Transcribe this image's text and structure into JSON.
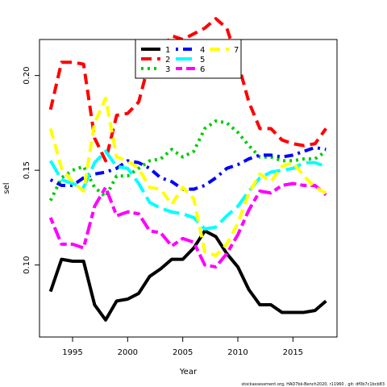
{
  "chart_data": {
    "type": "line",
    "xlabel": "Year",
    "ylabel": "sel",
    "xlim": [
      1992.0,
      2019.0
    ],
    "ylim": [
      0.062,
      0.219
    ],
    "xticks": [
      1995,
      2000,
      2005,
      2010,
      2015
    ],
    "yticks": [
      0.1,
      0.15,
      0.2
    ],
    "ytick_labels": [
      "0.10",
      "0.15",
      "0.20"
    ],
    "legend_position": "top-center",
    "caption": "stockassessment.org,  HAD7bk-Bench2020,  r11960 ,  git:  df0b7c1bcb83",
    "x": [
      1993,
      1994,
      1995,
      1996,
      1997,
      1998,
      1999,
      2000,
      2001,
      2002,
      2003,
      2004,
      2005,
      2006,
      2007,
      2008,
      2009,
      2010,
      2011,
      2012,
      2013,
      2014,
      2015,
      2016,
      2017,
      2018
    ],
    "series": [
      {
        "name": "1",
        "color": "#000000",
        "dash": "solid",
        "values": [
          0.086,
          0.103,
          0.102,
          0.102,
          0.079,
          0.071,
          0.081,
          0.082,
          0.085,
          0.094,
          0.098,
          0.103,
          0.103,
          0.109,
          0.118,
          0.115,
          0.106,
          0.099,
          0.087,
          0.079,
          0.079,
          0.075,
          0.075,
          0.075,
          0.076,
          0.081
        ]
      },
      {
        "name": "2",
        "color": "#ff0000",
        "dash": "dashed",
        "values": [
          0.182,
          0.207,
          0.207,
          0.206,
          0.167,
          0.155,
          0.179,
          0.18,
          0.186,
          0.208,
          0.213,
          0.221,
          0.219,
          0.222,
          0.225,
          0.23,
          0.225,
          0.207,
          0.186,
          0.172,
          0.172,
          0.166,
          0.164,
          0.163,
          0.164,
          0.172
        ]
      },
      {
        "name": "3",
        "color": "#00cc00",
        "dash": "dotted",
        "values": [
          0.134,
          0.146,
          0.15,
          0.152,
          0.141,
          0.136,
          0.147,
          0.147,
          0.151,
          0.155,
          0.156,
          0.161,
          0.157,
          0.16,
          0.172,
          0.176,
          0.175,
          0.17,
          0.163,
          0.157,
          0.157,
          0.155,
          0.155,
          0.156,
          0.156,
          0.16
        ]
      },
      {
        "name": "4",
        "color": "#0000ff",
        "dash": "dotdash",
        "values": [
          0.145,
          0.142,
          0.142,
          0.146,
          0.148,
          0.149,
          0.151,
          0.155,
          0.154,
          0.151,
          0.146,
          0.144,
          0.14,
          0.14,
          0.142,
          0.146,
          0.151,
          0.153,
          0.156,
          0.158,
          0.158,
          0.157,
          0.158,
          0.16,
          0.162,
          0.161
        ]
      },
      {
        "name": "5",
        "color": "#00ffff",
        "dash": "longdash",
        "values": [
          0.155,
          0.145,
          0.143,
          0.141,
          0.154,
          0.16,
          0.152,
          0.151,
          0.143,
          0.133,
          0.13,
          0.128,
          0.127,
          0.125,
          0.119,
          0.12,
          0.126,
          0.131,
          0.139,
          0.146,
          0.149,
          0.15,
          0.151,
          0.154,
          0.154,
          0.152
        ]
      },
      {
        "name": "6",
        "color": "#ff00ff",
        "dash": "twodash",
        "values": [
          0.125,
          0.111,
          0.111,
          0.109,
          0.131,
          0.141,
          0.126,
          0.128,
          0.127,
          0.118,
          0.117,
          0.11,
          0.114,
          0.112,
          0.1,
          0.099,
          0.106,
          0.116,
          0.129,
          0.139,
          0.138,
          0.142,
          0.143,
          0.142,
          0.142,
          0.137
        ]
      },
      {
        "name": "7",
        "color": "#ffff00",
        "dash": "dashed",
        "values": [
          0.172,
          0.151,
          0.144,
          0.139,
          0.175,
          0.188,
          0.157,
          0.155,
          0.151,
          0.141,
          0.14,
          0.132,
          0.141,
          0.135,
          0.107,
          0.105,
          0.111,
          0.122,
          0.138,
          0.148,
          0.144,
          0.152,
          0.154,
          0.147,
          0.141,
          0.138
        ]
      }
    ]
  }
}
